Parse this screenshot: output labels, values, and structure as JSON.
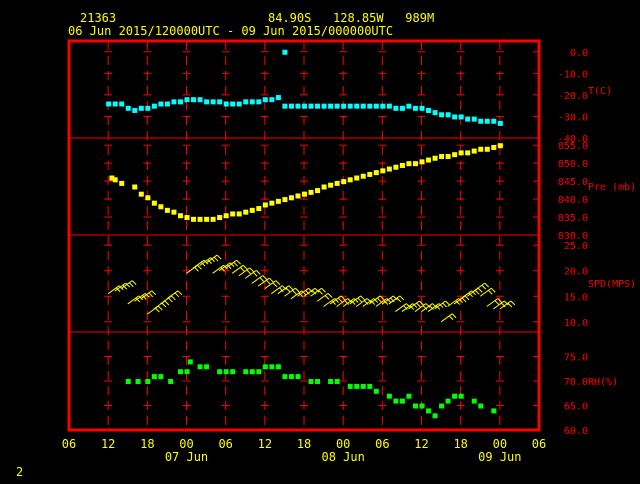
{
  "header": {
    "station": "21363",
    "location": "84.90S   128.85W   989M",
    "period": "06 Jun 2015/120000UTC - 09 Jun 2015/000000UTC"
  },
  "footer": {
    "page_number": "2"
  },
  "colors": {
    "frame": "#ff0000",
    "axis_text": "#ffff00",
    "panel_text": "#ff0000",
    "temperature": "#00ffff",
    "pressure": "#ffff00",
    "wind": "#ffff00",
    "humidity": "#00ff00",
    "background": "#000000"
  },
  "chart_data": {
    "type": "scatter",
    "x_unit": "hours since 06 Jun 2015 00 UTC",
    "x_range": [
      6,
      78
    ],
    "x_ticks": [
      {
        "x": 6,
        "label": "06"
      },
      {
        "x": 12,
        "label": "12"
      },
      {
        "x": 18,
        "label": "18"
      },
      {
        "x": 24,
        "label": "00"
      },
      {
        "x": 30,
        "label": "06"
      },
      {
        "x": 36,
        "label": "12"
      },
      {
        "x": 42,
        "label": "18"
      },
      {
        "x": 48,
        "label": "00"
      },
      {
        "x": 54,
        "label": "06"
      },
      {
        "x": 60,
        "label": "12"
      },
      {
        "x": 66,
        "label": "18"
      },
      {
        "x": 72,
        "label": "00"
      },
      {
        "x": 78,
        "label": "06"
      }
    ],
    "date_labels": [
      {
        "x": 24,
        "label": "07 Jun"
      },
      {
        "x": 48,
        "label": "08 Jun"
      },
      {
        "x": 72,
        "label": "09 Jun"
      }
    ],
    "panels": [
      {
        "key": "temperature",
        "label": "T(C)",
        "ylim": [
          -40,
          5
        ],
        "ticks": [
          "0.0",
          "-10.0",
          "-20.0",
          "-30.0",
          "-40.0"
        ],
        "tick_values": [
          0,
          -10,
          -20,
          -30,
          -40
        ],
        "points": [
          [
            12,
            -24
          ],
          [
            13,
            -24
          ],
          [
            14,
            -24
          ],
          [
            15,
            -26
          ],
          [
            16,
            -27
          ],
          [
            17,
            -26
          ],
          [
            18,
            -26
          ],
          [
            19,
            -25
          ],
          [
            20,
            -24
          ],
          [
            21,
            -24
          ],
          [
            22,
            -23
          ],
          [
            23,
            -23
          ],
          [
            24,
            -22
          ],
          [
            25,
            -22
          ],
          [
            26,
            -22
          ],
          [
            27,
            -23
          ],
          [
            28,
            -23
          ],
          [
            29,
            -23
          ],
          [
            30,
            -24
          ],
          [
            31,
            -24
          ],
          [
            32,
            -24
          ],
          [
            33,
            -23
          ],
          [
            34,
            -23
          ],
          [
            35,
            -23
          ],
          [
            36,
            -22
          ],
          [
            37,
            -22
          ],
          [
            38,
            -21
          ],
          [
            39,
            -25
          ],
          [
            40,
            -25
          ],
          [
            41,
            -25
          ],
          [
            42,
            -25
          ],
          [
            43,
            -25
          ],
          [
            44,
            -25
          ],
          [
            45,
            -25
          ],
          [
            46,
            -25
          ],
          [
            47,
            -25
          ],
          [
            48,
            -25
          ],
          [
            49,
            -25
          ],
          [
            50,
            -25
          ],
          [
            51,
            -25
          ],
          [
            52,
            -25
          ],
          [
            53,
            -25
          ],
          [
            54,
            -25
          ],
          [
            55,
            -25
          ],
          [
            56,
            -26
          ],
          [
            57,
            -26
          ],
          [
            58,
            -25
          ],
          [
            59,
            -26
          ],
          [
            60,
            -26
          ],
          [
            61,
            -27
          ],
          [
            62,
            -28
          ],
          [
            63,
            -29
          ],
          [
            64,
            -29
          ],
          [
            65,
            -30
          ],
          [
            66,
            -30
          ],
          [
            67,
            -31
          ],
          [
            68,
            -31
          ],
          [
            69,
            -32
          ],
          [
            70,
            -32
          ],
          [
            71,
            -32
          ],
          [
            72,
            -33
          ]
        ],
        "outliers": [
          [
            39,
            0
          ]
        ]
      },
      {
        "key": "pressure",
        "label": "Pre (mb)",
        "ylim": [
          830,
          857
        ],
        "ticks": [
          "855.0",
          "850.0",
          "845.0",
          "840.0",
          "835.0",
          "830.0"
        ],
        "tick_values": [
          855,
          850,
          845,
          840,
          835,
          830
        ],
        "points": [
          [
            12.5,
            846
          ],
          [
            13,
            845.5
          ],
          [
            14,
            844.5
          ],
          [
            16,
            843.5
          ],
          [
            17,
            841.5
          ],
          [
            18,
            840.5
          ],
          [
            19,
            839
          ],
          [
            20,
            838
          ],
          [
            21,
            837
          ],
          [
            22,
            836.5
          ],
          [
            23,
            835.5
          ],
          [
            24,
            835
          ],
          [
            25,
            834.5
          ],
          [
            26,
            834.5
          ],
          [
            27,
            834.5
          ],
          [
            28,
            834.5
          ],
          [
            29,
            835
          ],
          [
            30,
            835.5
          ],
          [
            31,
            836
          ],
          [
            32,
            836
          ],
          [
            33,
            836.5
          ],
          [
            34,
            837
          ],
          [
            35,
            837.5
          ],
          [
            36,
            838.5
          ],
          [
            37,
            839
          ],
          [
            38,
            839.5
          ],
          [
            39,
            840
          ],
          [
            40,
            840.5
          ],
          [
            41,
            841
          ],
          [
            42,
            841.5
          ],
          [
            43,
            842
          ],
          [
            44,
            842.5
          ],
          [
            45,
            843.5
          ],
          [
            46,
            844
          ],
          [
            47,
            844.5
          ],
          [
            48,
            845
          ],
          [
            49,
            845.5
          ],
          [
            50,
            846
          ],
          [
            51,
            846.5
          ],
          [
            52,
            847
          ],
          [
            53,
            847.5
          ],
          [
            54,
            848
          ],
          [
            55,
            848.5
          ],
          [
            56,
            849
          ],
          [
            57,
            849.5
          ],
          [
            58,
            850
          ],
          [
            59,
            850
          ],
          [
            60,
            850.5
          ],
          [
            61,
            851
          ],
          [
            62,
            851.5
          ],
          [
            63,
            852
          ],
          [
            64,
            852
          ],
          [
            65,
            852.5
          ],
          [
            66,
            853
          ],
          [
            67,
            853
          ],
          [
            68,
            853.5
          ],
          [
            69,
            854
          ],
          [
            70,
            854
          ],
          [
            71,
            854.5
          ],
          [
            72,
            855
          ]
        ]
      },
      {
        "key": "wind",
        "label": "SPD(MPS)",
        "ylim": [
          8,
          27
        ],
        "ticks": [
          "25.0",
          "20.0",
          "15.0",
          "10.0"
        ],
        "tick_values": [
          25,
          20,
          15,
          10
        ],
        "points": [
          [
            12,
            15.5
          ],
          [
            13,
            16
          ],
          [
            14,
            16.5
          ],
          [
            15,
            13.5
          ],
          [
            16,
            14
          ],
          [
            17,
            14.5
          ],
          [
            18,
            11.5
          ],
          [
            19,
            12.5
          ],
          [
            20,
            13.5
          ],
          [
            21,
            14.5
          ],
          [
            24,
            19.5
          ],
          [
            25,
            20.5
          ],
          [
            26,
            21
          ],
          [
            27,
            21.5
          ],
          [
            28,
            19.5
          ],
          [
            29,
            20
          ],
          [
            30,
            20.5
          ],
          [
            31,
            19.5
          ],
          [
            32,
            19
          ],
          [
            33,
            18.5
          ],
          [
            34,
            17.5
          ],
          [
            35,
            17
          ],
          [
            36,
            16.5
          ],
          [
            37,
            15.5
          ],
          [
            38,
            15.5
          ],
          [
            39,
            15
          ],
          [
            40,
            14.5
          ],
          [
            41,
            15
          ],
          [
            42,
            15
          ],
          [
            43,
            15
          ],
          [
            44,
            14
          ],
          [
            45,
            13
          ],
          [
            46,
            13.5
          ],
          [
            47,
            13
          ],
          [
            48,
            13
          ],
          [
            49,
            13.5
          ],
          [
            50,
            13
          ],
          [
            51,
            13
          ],
          [
            52,
            13.5
          ],
          [
            53,
            13
          ],
          [
            54,
            13.5
          ],
          [
            55,
            13.5
          ],
          [
            56,
            12
          ],
          [
            57,
            12
          ],
          [
            58,
            12.5
          ],
          [
            59,
            12
          ],
          [
            60,
            12
          ],
          [
            61,
            12
          ],
          [
            62,
            12.5
          ],
          [
            63,
            10
          ],
          [
            64,
            13
          ],
          [
            65,
            13.5
          ],
          [
            66,
            14.5
          ],
          [
            67,
            15
          ],
          [
            68,
            16
          ],
          [
            69,
            15
          ],
          [
            70,
            13
          ],
          [
            71,
            12.5
          ],
          [
            72,
            12.5
          ]
        ]
      },
      {
        "key": "humidity",
        "label": "RH(%)",
        "ylim": [
          60,
          80
        ],
        "ticks": [
          "75.0",
          "70.0",
          "65.0",
          "60.0"
        ],
        "tick_values": [
          75,
          70,
          65,
          60
        ],
        "points": [
          [
            15,
            70
          ],
          [
            16.5,
            70
          ],
          [
            18,
            70
          ],
          [
            19,
            71
          ],
          [
            20,
            71
          ],
          [
            21.5,
            70
          ],
          [
            23,
            72
          ],
          [
            24,
            72
          ],
          [
            24.5,
            74
          ],
          [
            26,
            73
          ],
          [
            27,
            73
          ],
          [
            29,
            72
          ],
          [
            30,
            72
          ],
          [
            31,
            72
          ],
          [
            33,
            72
          ],
          [
            34,
            72
          ],
          [
            35,
            72
          ],
          [
            36,
            73
          ],
          [
            37,
            73
          ],
          [
            38,
            73
          ],
          [
            39,
            71
          ],
          [
            40,
            71
          ],
          [
            41,
            71
          ],
          [
            43,
            70
          ],
          [
            44,
            70
          ],
          [
            46,
            70
          ],
          [
            47,
            70
          ],
          [
            49,
            69
          ],
          [
            50,
            69
          ],
          [
            51,
            69
          ],
          [
            52,
            69
          ],
          [
            53,
            68
          ],
          [
            55,
            67
          ],
          [
            56,
            66
          ],
          [
            57,
            66
          ],
          [
            58,
            67
          ],
          [
            59,
            65
          ],
          [
            60,
            65
          ],
          [
            61,
            64
          ],
          [
            62,
            63
          ],
          [
            63,
            65
          ],
          [
            64,
            66
          ],
          [
            65,
            67
          ],
          [
            66,
            67
          ],
          [
            68,
            66
          ],
          [
            69,
            65
          ],
          [
            71,
            64
          ]
        ]
      }
    ]
  }
}
